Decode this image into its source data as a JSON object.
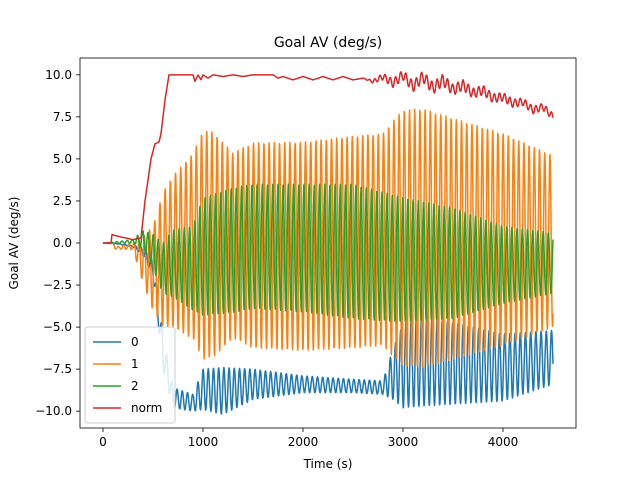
{
  "chart_data": {
    "type": "line",
    "title": "Goal AV (deg/s)",
    "xlabel": "Time (s)",
    "ylabel": "Goal AV (deg/s)",
    "xlim": [
      -230,
      4730
    ],
    "ylim": [
      -11.0,
      11.0
    ],
    "xticks": [
      0,
      1000,
      2000,
      3000,
      4000
    ],
    "xtick_labels": [
      "0",
      "1000",
      "2000",
      "3000",
      "4000"
    ],
    "yticks": [
      -10.0,
      -7.5,
      -5.0,
      -2.5,
      0.0,
      2.5,
      5.0,
      7.5,
      10.0
    ],
    "ytick_labels": [
      "−10.0",
      "−7.5",
      "−5.0",
      "−2.5",
      "0.0",
      "2.5",
      "5.0",
      "7.5",
      "10.0"
    ],
    "legend_position": "lower-left",
    "grid": false,
    "series": [
      {
        "name": "0",
        "color": "#1f77b4",
        "oscillation_period": 52,
        "center": [
          [
            0,
            0
          ],
          [
            100,
            0
          ],
          [
            300,
            -0.2
          ],
          [
            400,
            -0.5
          ],
          [
            500,
            -1.5
          ],
          [
            600,
            -6.5
          ],
          [
            700,
            -9.2
          ],
          [
            900,
            -9.5
          ],
          [
            1000,
            -8.7
          ],
          [
            1200,
            -8.8
          ],
          [
            1500,
            -8.4
          ],
          [
            2000,
            -8.4
          ],
          [
            2500,
            -8.5
          ],
          [
            2800,
            -8.6
          ],
          [
            2900,
            -7.8
          ],
          [
            3000,
            -7.3
          ],
          [
            3200,
            -7.0
          ],
          [
            4000,
            -7.4
          ],
          [
            4500,
            -6.8
          ]
        ],
        "amplitude": [
          [
            0,
            0
          ],
          [
            100,
            0
          ],
          [
            300,
            0.05
          ],
          [
            500,
            0.5
          ],
          [
            600,
            1.0
          ],
          [
            700,
            0.6
          ],
          [
            900,
            0.5
          ],
          [
            1000,
            1.2
          ],
          [
            1200,
            1.4
          ],
          [
            1500,
            0.9
          ],
          [
            2000,
            0.5
          ],
          [
            2500,
            0.4
          ],
          [
            2800,
            0.4
          ],
          [
            2900,
            1.5
          ],
          [
            3000,
            2.5
          ],
          [
            3200,
            2.7
          ],
          [
            4000,
            2.0
          ],
          [
            4500,
            1.6
          ]
        ]
      },
      {
        "name": "1",
        "color": "#ff7f0e",
        "oscillation_period": 52,
        "center": [
          [
            0,
            0
          ],
          [
            100,
            0
          ],
          [
            120,
            -0.3
          ],
          [
            300,
            -0.2
          ],
          [
            400,
            -1.0
          ],
          [
            500,
            -1.5
          ],
          [
            600,
            -1.0
          ],
          [
            700,
            -0.5
          ],
          [
            900,
            -0.2
          ],
          [
            1000,
            -0.1
          ],
          [
            2000,
            -0.2
          ],
          [
            3000,
            0.3
          ],
          [
            4000,
            0.2
          ],
          [
            4500,
            0.1
          ]
        ],
        "amplitude": [
          [
            0,
            0
          ],
          [
            120,
            0.05
          ],
          [
            300,
            0.2
          ],
          [
            500,
            2.5
          ],
          [
            600,
            4.0
          ],
          [
            700,
            4.5
          ],
          [
            900,
            5.5
          ],
          [
            1000,
            6.8
          ],
          [
            1100,
            6.7
          ],
          [
            1300,
            5.5
          ],
          [
            1500,
            6.1
          ],
          [
            2000,
            6.2
          ],
          [
            2500,
            6.3
          ],
          [
            2800,
            6.3
          ],
          [
            2900,
            7.0
          ],
          [
            3000,
            7.6
          ],
          [
            3200,
            7.7
          ],
          [
            4000,
            6.3
          ],
          [
            4500,
            5.1
          ]
        ]
      },
      {
        "name": "2",
        "color": "#2ca02c",
        "oscillation_period": 52,
        "center": [
          [
            0,
            0
          ],
          [
            100,
            0
          ],
          [
            300,
            0.1
          ],
          [
            400,
            0.2
          ],
          [
            500,
            -0.5
          ],
          [
            600,
            -1.5
          ],
          [
            700,
            -1.2
          ],
          [
            900,
            -1.5
          ],
          [
            1000,
            -0.8
          ],
          [
            1500,
            -0.2
          ],
          [
            2000,
            -0.3
          ],
          [
            2500,
            -0.5
          ],
          [
            3000,
            -1.0
          ],
          [
            3500,
            -1.2
          ],
          [
            4000,
            -1.3
          ],
          [
            4500,
            -1.2
          ]
        ],
        "amplitude": [
          [
            0,
            0
          ],
          [
            100,
            0.05
          ],
          [
            300,
            0.1
          ],
          [
            500,
            1.0
          ],
          [
            600,
            1.5
          ],
          [
            700,
            2.0
          ],
          [
            900,
            2.5
          ],
          [
            1000,
            3.5
          ],
          [
            1300,
            3.7
          ],
          [
            1500,
            3.7
          ],
          [
            2000,
            3.8
          ],
          [
            2500,
            4.0
          ],
          [
            3000,
            3.7
          ],
          [
            3500,
            3.3
          ],
          [
            4000,
            2.3
          ],
          [
            4500,
            1.8
          ]
        ]
      },
      {
        "name": "norm",
        "color": "#d62728",
        "points": [
          [
            0,
            0
          ],
          [
            80,
            0
          ],
          [
            90,
            0.5
          ],
          [
            150,
            0.4
          ],
          [
            300,
            0.2
          ],
          [
            380,
            0.3
          ],
          [
            420,
            2.5
          ],
          [
            480,
            5.0
          ],
          [
            520,
            5.9
          ],
          [
            560,
            6.0
          ],
          [
            580,
            6.5
          ],
          [
            620,
            8.5
          ],
          [
            660,
            10.0
          ],
          [
            700,
            10.0
          ],
          [
            900,
            10.0
          ],
          [
            920,
            9.6
          ],
          [
            950,
            10.0
          ],
          [
            980,
            9.7
          ],
          [
            1000,
            10.0
          ],
          [
            1050,
            9.8
          ],
          [
            1100,
            10.0
          ],
          [
            1200,
            9.9
          ],
          [
            1300,
            10.0
          ],
          [
            1400,
            9.9
          ],
          [
            1500,
            10.0
          ],
          [
            1700,
            10.0
          ],
          [
            1750,
            9.8
          ],
          [
            1800,
            9.9
          ],
          [
            1900,
            9.7
          ],
          [
            2000,
            9.9
          ],
          [
            2100,
            9.7
          ],
          [
            2200,
            9.9
          ],
          [
            2300,
            9.7
          ],
          [
            2400,
            9.9
          ],
          [
            2500,
            9.7
          ],
          [
            2600,
            9.8
          ],
          [
            2700,
            9.6
          ],
          [
            2800,
            9.9
          ],
          [
            2900,
            9.5
          ],
          [
            3000,
            10.0
          ],
          [
            3100,
            9.3
          ],
          [
            3200,
            9.9
          ],
          [
            3300,
            9.2
          ],
          [
            3400,
            9.7
          ],
          [
            3500,
            9.1
          ],
          [
            3600,
            9.4
          ],
          [
            3700,
            8.9
          ],
          [
            3800,
            9.1
          ],
          [
            3900,
            8.6
          ],
          [
            4000,
            8.7
          ],
          [
            4100,
            8.3
          ],
          [
            4200,
            8.4
          ],
          [
            4300,
            7.9
          ],
          [
            4400,
            8.1
          ],
          [
            4500,
            7.5
          ]
        ],
        "ripple": [
          [
            0,
            0
          ],
          [
            2600,
            0
          ],
          [
            2800,
            0.2
          ],
          [
            3000,
            0.3
          ],
          [
            3300,
            0.35
          ],
          [
            4000,
            0.25
          ],
          [
            4500,
            0.2
          ]
        ],
        "oscillation_period": 52
      }
    ]
  }
}
